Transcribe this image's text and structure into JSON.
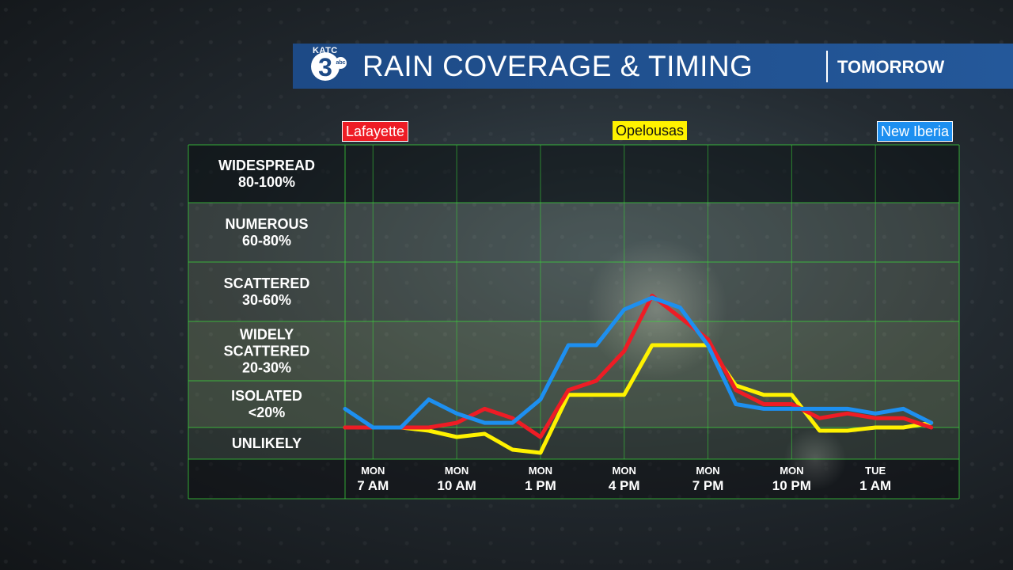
{
  "header": {
    "logo_text": "KATC",
    "logo_number": "3",
    "logo_network": "abc",
    "title": "RAIN COVERAGE & TIMING",
    "subtitle": "TOMORROW"
  },
  "colors": {
    "banner": "#1d4a86",
    "lafayette": "#ee1c25",
    "opelousas": "#fff200",
    "new_iberia": "#1d8ff0",
    "grid": "#3bd63b"
  },
  "chart_data": {
    "type": "line",
    "title": "RAIN COVERAGE & TIMING",
    "ylabel": "",
    "xlabel": "",
    "y_categories": [
      {
        "label": [
          "WIDESPREAD",
          "80-100%"
        ],
        "range": [
          80,
          100
        ]
      },
      {
        "label": [
          "NUMEROUS",
          "60-80%"
        ],
        "range": [
          60,
          80
        ]
      },
      {
        "label": [
          "SCATTERED",
          "30-60%"
        ],
        "range": [
          30,
          60
        ]
      },
      {
        "label": [
          "WIDELY",
          "SCATTERED",
          "20-30%"
        ],
        "range": [
          20,
          30
        ]
      },
      {
        "label": [
          "ISOLATED",
          "<20%"
        ],
        "range": [
          10,
          20
        ]
      },
      {
        "label": [
          "UNLIKELY"
        ],
        "range": [
          0,
          10
        ]
      }
    ],
    "x_ticks": [
      {
        "hour": 7,
        "day": "MON",
        "time": "7 AM"
      },
      {
        "hour": 10,
        "day": "MON",
        "time": "10 AM"
      },
      {
        "hour": 13,
        "day": "MON",
        "time": "1 PM"
      },
      {
        "hour": 16,
        "day": "MON",
        "time": "4 PM"
      },
      {
        "hour": 19,
        "day": "MON",
        "time": "7 PM"
      },
      {
        "hour": 22,
        "day": "MON",
        "time": "10 PM"
      },
      {
        "hour": 25,
        "day": "TUE",
        "time": "1 AM"
      }
    ],
    "x": [
      6,
      7,
      8,
      9,
      10,
      11,
      12,
      13,
      14,
      15,
      16,
      17,
      18,
      19,
      20,
      21,
      22,
      23,
      24,
      25,
      26,
      27
    ],
    "xlim": [
      6,
      28
    ],
    "ylim": [
      0,
      100
    ],
    "legend_position": "top",
    "series": [
      {
        "name": "Lafayette",
        "color": "#ee1c25",
        "values": [
          10,
          10,
          10,
          10,
          11,
          14,
          12,
          7,
          18,
          20,
          25,
          43,
          32,
          27,
          18,
          15,
          15,
          12,
          13,
          12,
          12,
          10
        ]
      },
      {
        "name": "Opelousas",
        "color": "#fff200",
        "values": [
          10,
          10,
          10,
          9,
          7,
          8,
          3,
          2,
          17,
          17,
          17,
          26,
          26,
          26,
          19,
          17,
          17,
          9,
          9,
          10,
          10,
          11
        ]
      },
      {
        "name": "New Iberia",
        "color": "#1d8ff0",
        "values": [
          14,
          10,
          10,
          16,
          13,
          11,
          11,
          16,
          26,
          26,
          36,
          42,
          37,
          26,
          15,
          14,
          14,
          14,
          14,
          13,
          14,
          11
        ]
      }
    ]
  }
}
